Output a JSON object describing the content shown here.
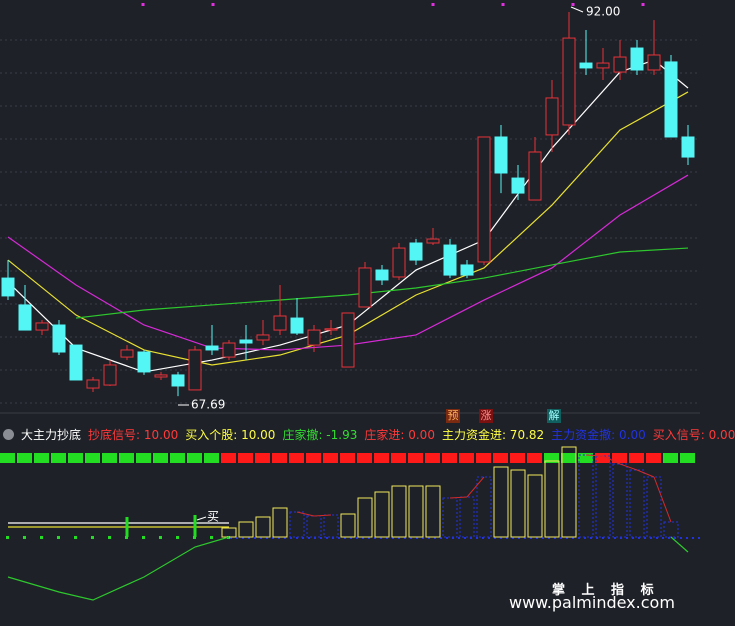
{
  "chart_data": [
    {
      "type": "candlestick",
      "ylim": [
        66.81,
        92.76
      ],
      "up_color": "#e8333a",
      "down_color": "#54f5f5",
      "open": [
        75.16,
        73.46,
        71.87,
        72.19,
        70.92,
        68.2,
        68.39,
        70.16,
        70.48,
        68.9,
        69.03,
        68.08,
        70.86,
        70.16,
        71.24,
        71.24,
        71.87,
        72.63,
        70.92,
        71.87,
        69.53,
        73.33,
        75.67,
        75.23,
        77.38,
        77.38,
        77.25,
        75.99,
        76.18,
        84.09,
        81.49,
        80.1,
        84.22,
        84.85,
        88.77,
        88.46,
        88.2,
        89.72,
        88.33,
        88.84,
        84.09
      ],
      "high": [
        76.3,
        74.72,
        72.51,
        72.51,
        70.92,
        68.9,
        69.97,
        70.92,
        70.61,
        69.22,
        69.22,
        70.86,
        72.19,
        71.24,
        72.19,
        72.51,
        74.72,
        73.9,
        72.19,
        72.51,
        72.95,
        76.18,
        75.99,
        77.38,
        77.63,
        78.33,
        77.63,
        76.3,
        84.09,
        84.85,
        82.32,
        84.09,
        87.7,
        92.0,
        90.86,
        89.72,
        90.23,
        90.23,
        91.49,
        89.28,
        84.85
      ],
      "low": [
        73.77,
        71.87,
        71.56,
        70.29,
        68.71,
        67.95,
        68.33,
        69.97,
        69.03,
        68.71,
        67.69,
        68.08,
        70.29,
        69.97,
        69.97,
        70.92,
        71.56,
        71.56,
        70.48,
        71.56,
        69.53,
        73.33,
        74.72,
        75.04,
        75.99,
        77.25,
        75.16,
        75.16,
        75.99,
        80.54,
        80.1,
        80.1,
        83.14,
        84.22,
        88.01,
        87.7,
        87.7,
        88.01,
        88.01,
        84.09,
        82.32
      ],
      "close": [
        74.03,
        71.87,
        72.32,
        70.48,
        68.71,
        68.71,
        69.66,
        70.61,
        69.22,
        69.03,
        68.33,
        70.61,
        70.61,
        71.05,
        71.05,
        71.56,
        72.76,
        71.68,
        71.87,
        71.95,
        72.95,
        75.8,
        75.04,
        77.06,
        76.3,
        77.63,
        75.35,
        75.35,
        84.09,
        81.81,
        80.54,
        83.14,
        86.56,
        90.35,
        88.46,
        88.77,
        89.15,
        88.33,
        89.28,
        84.09,
        82.82
      ],
      "lines": [
        {
          "color": "#ffffff",
          "x": [
            0,
            4,
            8,
            12,
            16,
            20,
            24,
            28,
            32,
            36,
            38,
            40
          ],
          "values": [
            74.91,
            70.73,
            69.22,
            69.97,
            70.92,
            72.19,
            75.67,
            77.57,
            83.39,
            88.2,
            88.96,
            87.19
          ]
        },
        {
          "color": "#e8e032",
          "x": [
            0,
            4,
            8,
            12,
            16,
            20,
            24,
            28,
            32,
            36,
            40
          ],
          "values": [
            76.3,
            72.82,
            70.61,
            69.66,
            70.29,
            71.56,
            74.09,
            75.8,
            79.78,
            84.53,
            86.94
          ]
        },
        {
          "color": "#d62ad6",
          "x": [
            0,
            4,
            8,
            12,
            16,
            20,
            24,
            28,
            32,
            36,
            40
          ],
          "values": [
            77.76,
            74.72,
            72.19,
            70.73,
            70.61,
            70.92,
            71.56,
            73.77,
            75.8,
            79.15,
            81.68
          ]
        },
        {
          "color": "#2ec82e",
          "x": [
            4,
            8,
            12,
            16,
            20,
            24,
            28,
            32,
            36,
            40
          ],
          "values": [
            72.63,
            73.14,
            73.46,
            73.77,
            74.09,
            74.53,
            75.16,
            75.99,
            76.81,
            77.06
          ]
        }
      ],
      "annotations": {
        "high": "92.00",
        "low": "67.69"
      }
    },
    {
      "type": "indicator",
      "ylim": [
        -89,
        100
      ],
      "header": [
        {
          "text": "大主力抄底",
          "color": "#ffffff"
        },
        {
          "text": "抄底信号: 10.00",
          "color": "#ff3a3a"
        },
        {
          "text": "买入个股: 10.00",
          "color": "#ffff44"
        },
        {
          "text": "庄家撤: -1.93",
          "color": "#33dd33"
        },
        {
          "text": "庄家进: 0.00",
          "color": "#ff3a3a"
        },
        {
          "text": "主力资金进: 70.82",
          "color": "#ffff44"
        },
        {
          "text": "主力资金撤: 0.00",
          "color": "#2233dd"
        },
        {
          "text": "买入信号: 0.00",
          "color": "#ff3a3a"
        }
      ],
      "tags": [
        {
          "text": "预",
          "bg": "#7a2a10",
          "color": "#ffb060"
        },
        {
          "text": "涨",
          "bg": "#7a1010",
          "color": "#ff9090"
        },
        {
          "text": "解",
          "bg": "#106060",
          "color": "#a0ffff"
        }
      ],
      "signal_colors": [
        "#22dd22",
        "#22dd22",
        "#22dd22",
        "#22dd22",
        "#22dd22",
        "#22dd22",
        "#22dd22",
        "#22dd22",
        "#22dd22",
        "#22dd22",
        "#22dd22",
        "#22dd22",
        "#22dd22",
        "#ff1a1a",
        "#ff1a1a",
        "#ff1a1a",
        "#ff1a1a",
        "#ff1a1a",
        "#ff1a1a",
        "#ff1a1a",
        "#ff1a1a",
        "#ff1a1a",
        "#ff1a1a",
        "#ff1a1a",
        "#ff1a1a",
        "#ff1a1a",
        "#ff1a1a",
        "#ff1a1a",
        "#ff1a1a",
        "#ff1a1a",
        "#ff1a1a",
        "#ff1a1a",
        "#22dd22",
        "#22dd22",
        "#22dd22",
        "#ff1a1a",
        "#ff1a1a",
        "#ff1a1a",
        "#ff1a1a",
        "#22dd22",
        "#22dd22"
      ],
      "bars": [
        {
          "style": "hollow",
          "color": "#f2e85a",
          "x": [
            13,
            14,
            15,
            16,
            20,
            21,
            22,
            23,
            24,
            25,
            29,
            30,
            31,
            32,
            33
          ],
          "values": [
            9,
            15,
            20,
            29,
            23,
            39,
            45,
            51,
            51,
            51,
            70,
            67,
            62,
            76,
            90
          ]
        },
        {
          "style": "dashed",
          "color": "#2233dd",
          "link_color": "#d22a2a",
          "x": [
            17,
            18,
            19,
            26,
            27,
            28,
            34,
            35,
            36,
            37,
            38,
            39
          ],
          "values": [
            25,
            21,
            22,
            39,
            40,
            60,
            82,
            81,
            73,
            67,
            60,
            15
          ]
        }
      ],
      "lines": [
        {
          "color": "#ffffff",
          "x": [
            0,
            13
          ],
          "values": [
            14,
            14
          ]
        },
        {
          "color": "#e8e032",
          "x": [
            0,
            13
          ],
          "values": [
            10,
            10
          ]
        },
        {
          "color": "#2ec82e",
          "x": [
            0,
            3,
            5,
            8,
            11,
            13,
            38,
            39,
            40
          ],
          "values": [
            -40,
            -55,
            -63,
            -40,
            -10,
            0,
            null,
            0,
            -15
          ]
        }
      ],
      "spikes": {
        "color": "#22dd22",
        "x": [
          7,
          11
        ],
        "values": [
          20,
          22
        ]
      },
      "annotation": "买"
    }
  ],
  "watermark": {
    "title": "掌 上 指 标",
    "url": "www.palmindex.com"
  }
}
